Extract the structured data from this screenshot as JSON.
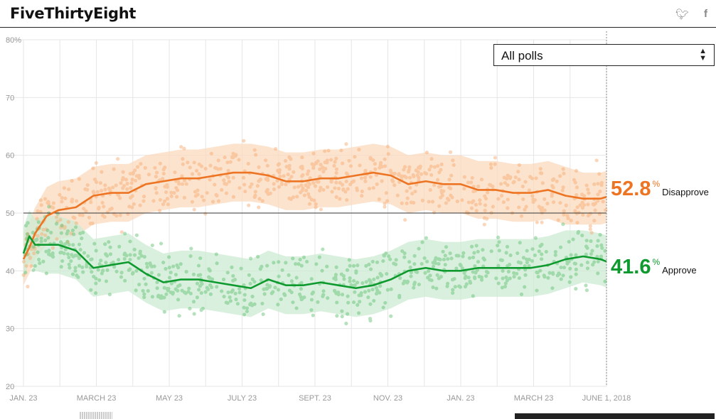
{
  "header": {
    "logo": "FiveThirtyEight",
    "twitter_icon": "twitter-icon",
    "facebook_icon": "facebook-icon"
  },
  "filter": {
    "selected": "All polls",
    "icon": "sort-arrows-icon"
  },
  "readouts": {
    "disapprove": {
      "value": "52.8",
      "unit": "%",
      "label": "Disapprove"
    },
    "approve": {
      "value": "41.6",
      "unit": "%",
      "label": "Approve"
    }
  },
  "colors": {
    "disapprove": "#ed7422",
    "approve": "#0e9a2e",
    "grid": "#e6e6e6"
  },
  "chart_data": {
    "type": "line",
    "title": "",
    "xlabel": "",
    "ylabel": "",
    "ylim": [
      20,
      80
    ],
    "yticks": [
      20,
      30,
      40,
      50,
      60,
      70,
      80
    ],
    "ytick_labels": [
      "20",
      "30",
      "40",
      "50",
      "60",
      "70",
      "80%"
    ],
    "reference_line": 50,
    "x_tick_labels": [
      "JAN. 23",
      "MARCH 23",
      "MAY 23",
      "JULY 23",
      "SEPT. 23",
      "NOV. 23",
      "JAN. 23",
      "MARCH 23",
      "JUNE 1, 2018"
    ],
    "x": [
      0,
      5,
      10,
      20,
      30,
      45,
      60,
      75,
      90,
      105,
      120,
      135,
      150,
      165,
      180,
      195,
      210,
      225,
      240,
      255,
      270,
      285,
      300,
      315,
      330,
      345,
      360,
      375,
      390,
      405,
      420,
      435,
      450,
      465,
      480,
      495,
      500
    ],
    "series": [
      {
        "name": "Disapprove",
        "values": [
          42.0,
          44.0,
          46.5,
          49.5,
          50.5,
          51.0,
          53.0,
          53.5,
          53.5,
          55.0,
          55.5,
          56.0,
          56.0,
          56.5,
          57.0,
          57.0,
          56.5,
          55.5,
          55.5,
          56.0,
          56.0,
          56.5,
          57.0,
          56.5,
          55.0,
          55.5,
          55.0,
          55.0,
          54.0,
          54.0,
          53.5,
          53.5,
          54.0,
          53.0,
          52.5,
          52.5,
          52.8
        ],
        "band_halfwidth": [
          4.5,
          4.5,
          4.5,
          5,
          5,
          5,
          5,
          5,
          5,
          5,
          5,
          5,
          5,
          5,
          5,
          5,
          5,
          5,
          5,
          5,
          5,
          5,
          5,
          5,
          5,
          5,
          5,
          5,
          5,
          5,
          5,
          5,
          5,
          5,
          4.5,
          4.5,
          4.5
        ],
        "color": "#ed7422"
      },
      {
        "name": "Approve",
        "values": [
          43.0,
          46.0,
          44.5,
          44.5,
          44.5,
          43.5,
          40.5,
          41.0,
          41.5,
          39.5,
          38.0,
          38.5,
          38.5,
          38.0,
          37.5,
          37.0,
          38.5,
          37.5,
          37.5,
          38.0,
          37.5,
          37.0,
          37.5,
          38.5,
          40.0,
          40.5,
          40.0,
          40.0,
          40.5,
          40.5,
          40.5,
          40.5,
          41.0,
          42.0,
          42.5,
          42.0,
          41.6
        ],
        "band_halfwidth": [
          4.5,
          4.5,
          4.5,
          5,
          5,
          5,
          5,
          5,
          5,
          5,
          5,
          5,
          5,
          5,
          5,
          5,
          5,
          5,
          5,
          5,
          5,
          5,
          5,
          5,
          5,
          5,
          5,
          5,
          5,
          5,
          5,
          5,
          5,
          5,
          4.5,
          4.5,
          4.5
        ],
        "color": "#0e9a2e"
      }
    ]
  }
}
